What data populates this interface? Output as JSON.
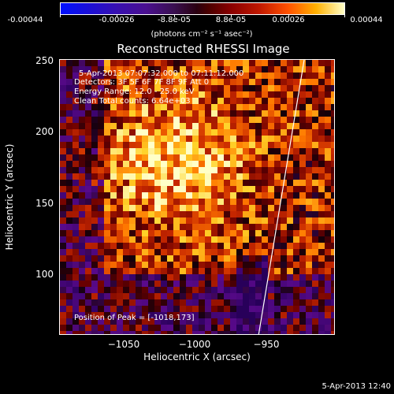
{
  "colorbar": {
    "ticks": [
      "-0.00044",
      "-0.00026",
      "-8.8e-05",
      "8.8e-05",
      "0.00026",
      "0.00044"
    ],
    "units": "(photons cm⁻² s⁻¹ asec⁻²)"
  },
  "title": "Reconstructed RHESSI Image",
  "info": {
    "time": "5-Apr-2013 07:07:32.000 to 07:11:12.000",
    "detectors": "Detectors: 3F 5F 6F 7F 8F 9F  Att 0",
    "energy": "Energy Range: 12.0 - 25.0 keV",
    "algorithm": "Clean     Total counts: 6.64e+03",
    "peak": "Position of Peak = [-1018,173]"
  },
  "axes": {
    "xlabel": "Heliocentric X (arcsec)",
    "ylabel": "Heliocentric Y (arcsec)",
    "xticks": [
      "−1050",
      "−1000",
      "−950"
    ],
    "yticks": [
      "250",
      "200",
      "150",
      "100"
    ]
  },
  "timestamp": "5-Apr-2013 12:40"
}
